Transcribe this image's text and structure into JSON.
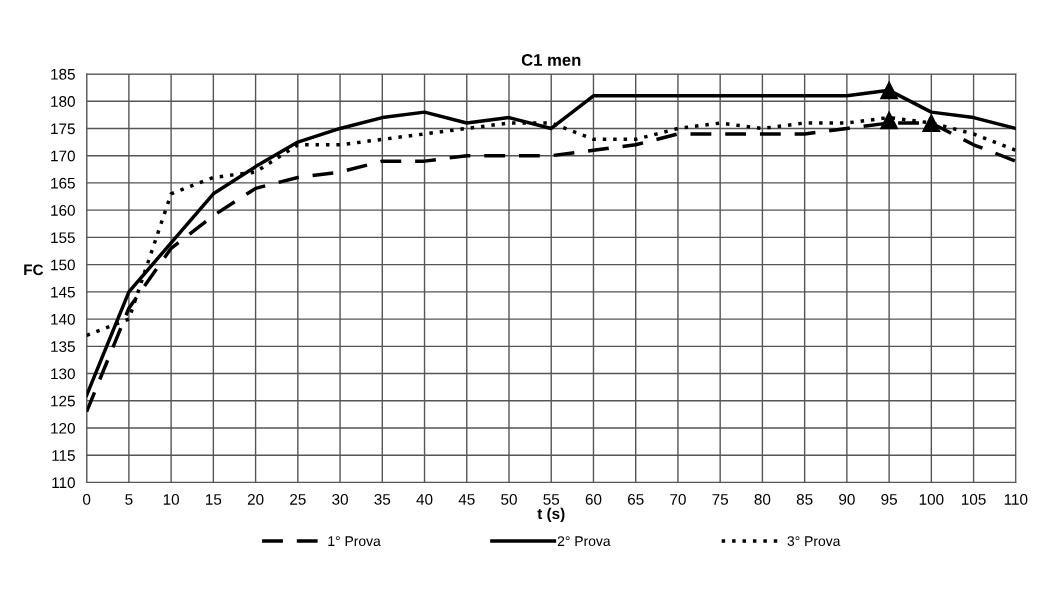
{
  "chart_data": {
    "type": "line",
    "title": "C1 men",
    "xlabel": "t (s)",
    "ylabel": "FC",
    "x": [
      0,
      5,
      10,
      15,
      20,
      25,
      30,
      35,
      40,
      45,
      50,
      55,
      60,
      65,
      70,
      75,
      80,
      85,
      90,
      95,
      100,
      105,
      110
    ],
    "xlim": [
      0,
      110
    ],
    "xticks": [
      0,
      5,
      10,
      15,
      20,
      25,
      30,
      35,
      40,
      45,
      50,
      55,
      60,
      65,
      70,
      75,
      80,
      85,
      90,
      95,
      100,
      105,
      110
    ],
    "ylim": [
      110,
      185
    ],
    "yticks": [
      110,
      115,
      120,
      125,
      130,
      135,
      140,
      145,
      150,
      155,
      160,
      165,
      170,
      175,
      180,
      185
    ],
    "grid": true,
    "legend": "bottom",
    "series": [
      {
        "name": "1° Prova",
        "color": "#000000",
        "line_style": "dashed",
        "values": [
          123,
          142,
          153,
          159,
          164,
          166,
          167,
          169,
          169,
          170,
          170,
          170,
          171,
          172,
          174,
          174,
          174,
          174,
          175,
          176,
          176,
          172,
          169
        ]
      },
      {
        "name": "2° Prova",
        "color": "#000000",
        "line_style": "solid",
        "values": [
          126,
          145,
          154,
          163,
          168,
          172.5,
          175,
          177,
          178,
          176,
          177,
          175,
          181,
          181,
          181,
          181,
          181,
          181,
          181,
          182,
          178,
          177,
          175
        ]
      },
      {
        "name": "3° Prova",
        "color": "#000000",
        "line_style": "dotted",
        "values": [
          137,
          140,
          163,
          166,
          167,
          172,
          172,
          173,
          174,
          175,
          176,
          176,
          173,
          173,
          175,
          176,
          175,
          176,
          176,
          177,
          176,
          174,
          171
        ]
      },
      {
        "type": "scatter",
        "marker": "triangle",
        "color": "#000000",
        "values": [
          null,
          null,
          null,
          null,
          null,
          null,
          null,
          null,
          null,
          null,
          null,
          null,
          null,
          null,
          null,
          null,
          null,
          null,
          null,
          182,
          null,
          null,
          null
        ]
      },
      {
        "type": "scatter",
        "marker": "triangle",
        "color": "#000000",
        "values": [
          null,
          null,
          null,
          null,
          null,
          null,
          null,
          null,
          null,
          null,
          null,
          null,
          null,
          null,
          null,
          null,
          null,
          null,
          null,
          176.5,
          176,
          null,
          null
        ]
      }
    ]
  }
}
